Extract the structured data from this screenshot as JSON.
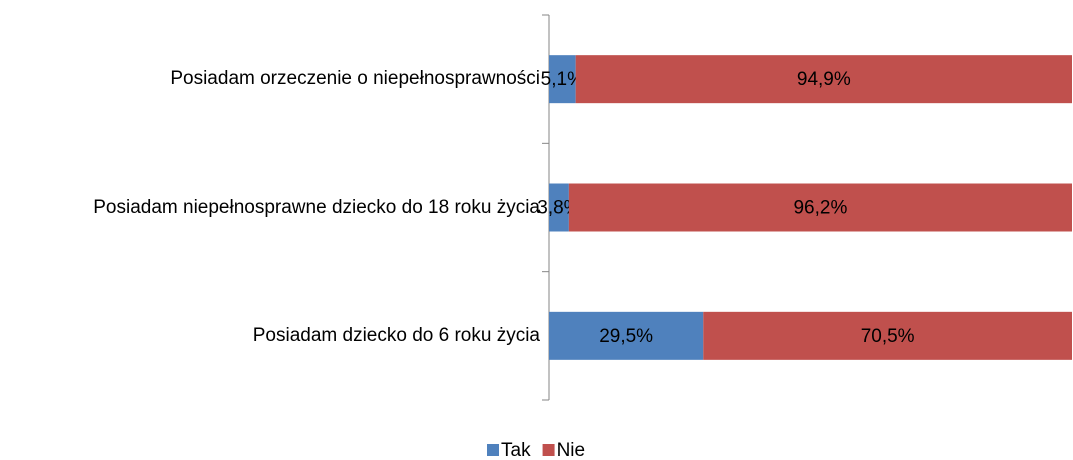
{
  "chart_data": {
    "type": "stacked_bar_horizontal",
    "categories": [
      "Posiadam orzeczenie o niepełnosprawności",
      "Posiadam niepełnosprawne dziecko do 18 roku życia",
      "Posiadam dziecko do 6 roku życia"
    ],
    "series": [
      {
        "name": "Tak",
        "color": "#4f81bd",
        "values": [
          5.1,
          3.8,
          29.5
        ],
        "value_labels": [
          "5,1%",
          "3,8%",
          "29,5%"
        ]
      },
      {
        "name": "Nie",
        "color": "#c0504d",
        "values": [
          94.9,
          96.2,
          70.5
        ],
        "value_labels": [
          "94,9%",
          "96,2%",
          "70,5%"
        ]
      }
    ],
    "legend": "bottom"
  }
}
